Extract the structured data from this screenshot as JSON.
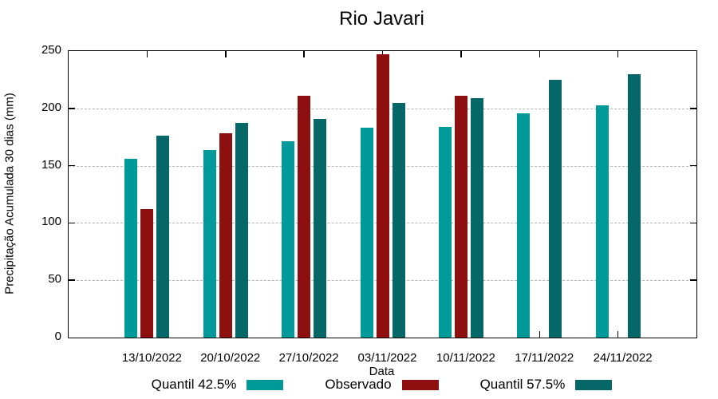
{
  "title": "Rio Javari",
  "chart_data": {
    "type": "bar",
    "title": "Rio Javari",
    "xlabel": "Data",
    "ylabel": "Precipitação Acumulada 30 dias (mm)",
    "categories": [
      "13/10/2022",
      "20/10/2022",
      "27/10/2022",
      "03/11/2022",
      "10/11/2022",
      "17/11/2022",
      "24/11/2022"
    ],
    "series": [
      {
        "name": "Quantil 42.5%",
        "color": "#009a9b",
        "values": [
          156,
          164,
          171,
          183,
          184,
          196,
          203
        ]
      },
      {
        "name": "Observado",
        "color": "#8e0f0f",
        "values": [
          112,
          178,
          211,
          247,
          211,
          null,
          null
        ]
      },
      {
        "name": "Quantil 57.5%",
        "color": "#056767",
        "values": [
          176,
          187,
          191,
          205,
          209,
          225,
          230
        ]
      }
    ],
    "ylim": [
      0,
      250
    ],
    "yticks": [
      0,
      50,
      100,
      150,
      200,
      250
    ],
    "grid": "horizontal-dashed",
    "legend_position": "bottom"
  }
}
